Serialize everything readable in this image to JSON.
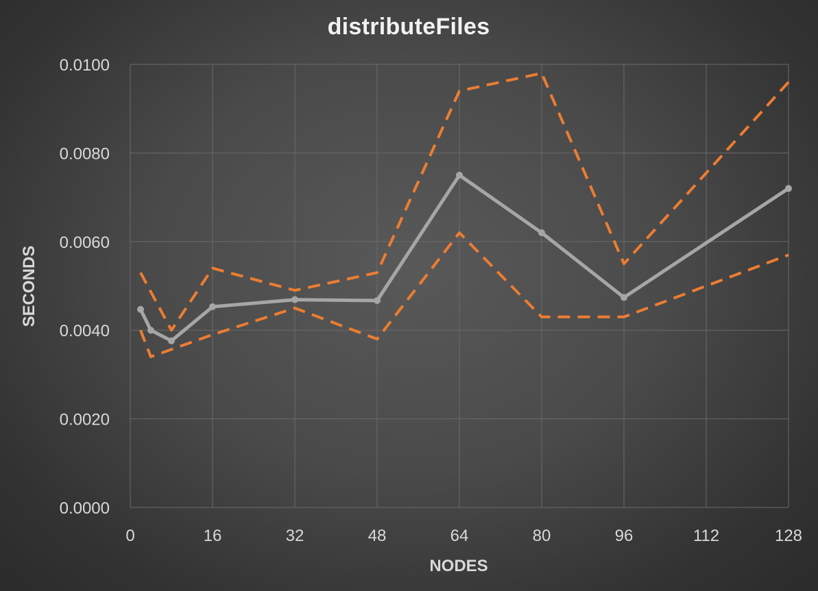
{
  "chart_data": {
    "type": "line",
    "title": "distributeFiles",
    "xlabel": "NODES",
    "ylabel": "SECONDS",
    "xlim": [
      0,
      128
    ],
    "ylim": [
      0,
      0.01
    ],
    "x_ticks": [
      0,
      16,
      32,
      48,
      64,
      80,
      96,
      112,
      128
    ],
    "x_tick_labels": [
      "0",
      "16",
      "32",
      "48",
      "64",
      "80",
      "96",
      "112",
      "128"
    ],
    "y_ticks": [
      0,
      0.002,
      0.004,
      0.006,
      0.008,
      0.01
    ],
    "y_tick_labels": [
      "0.0000",
      "0.0020",
      "0.0040",
      "0.0060",
      "0.0080",
      "0.0100"
    ],
    "grid": true,
    "legend": "none",
    "series": [
      {
        "role": "mean",
        "style": "solid-with-markers",
        "color": "#a6a6a6",
        "points": [
          [
            2,
            0.00447
          ],
          [
            4,
            0.004
          ],
          [
            8,
            0.00376
          ],
          [
            16,
            0.00453
          ],
          [
            32,
            0.00469
          ],
          [
            48,
            0.00467
          ],
          [
            64,
            0.0075
          ],
          [
            80,
            0.0062
          ],
          [
            96,
            0.00474
          ],
          [
            128,
            0.0072
          ]
        ]
      },
      {
        "role": "upper bound",
        "style": "dashed",
        "color": "#ed7d31",
        "points": [
          [
            2,
            0.0053
          ],
          [
            8,
            0.004
          ],
          [
            16,
            0.0054
          ],
          [
            32,
            0.0049
          ],
          [
            48,
            0.0053
          ],
          [
            64,
            0.0094
          ],
          [
            80,
            0.0098
          ],
          [
            96,
            0.0055
          ],
          [
            128,
            0.0096
          ]
        ]
      },
      {
        "role": "lower bound",
        "style": "dashed",
        "color": "#ed7d31",
        "points": [
          [
            2,
            0.004
          ],
          [
            4,
            0.0034
          ],
          [
            16,
            0.0039
          ],
          [
            32,
            0.0045
          ],
          [
            48,
            0.0038
          ],
          [
            64,
            0.0062
          ],
          [
            80,
            0.0043
          ],
          [
            96,
            0.0043
          ],
          [
            128,
            0.0057
          ]
        ]
      }
    ]
  }
}
